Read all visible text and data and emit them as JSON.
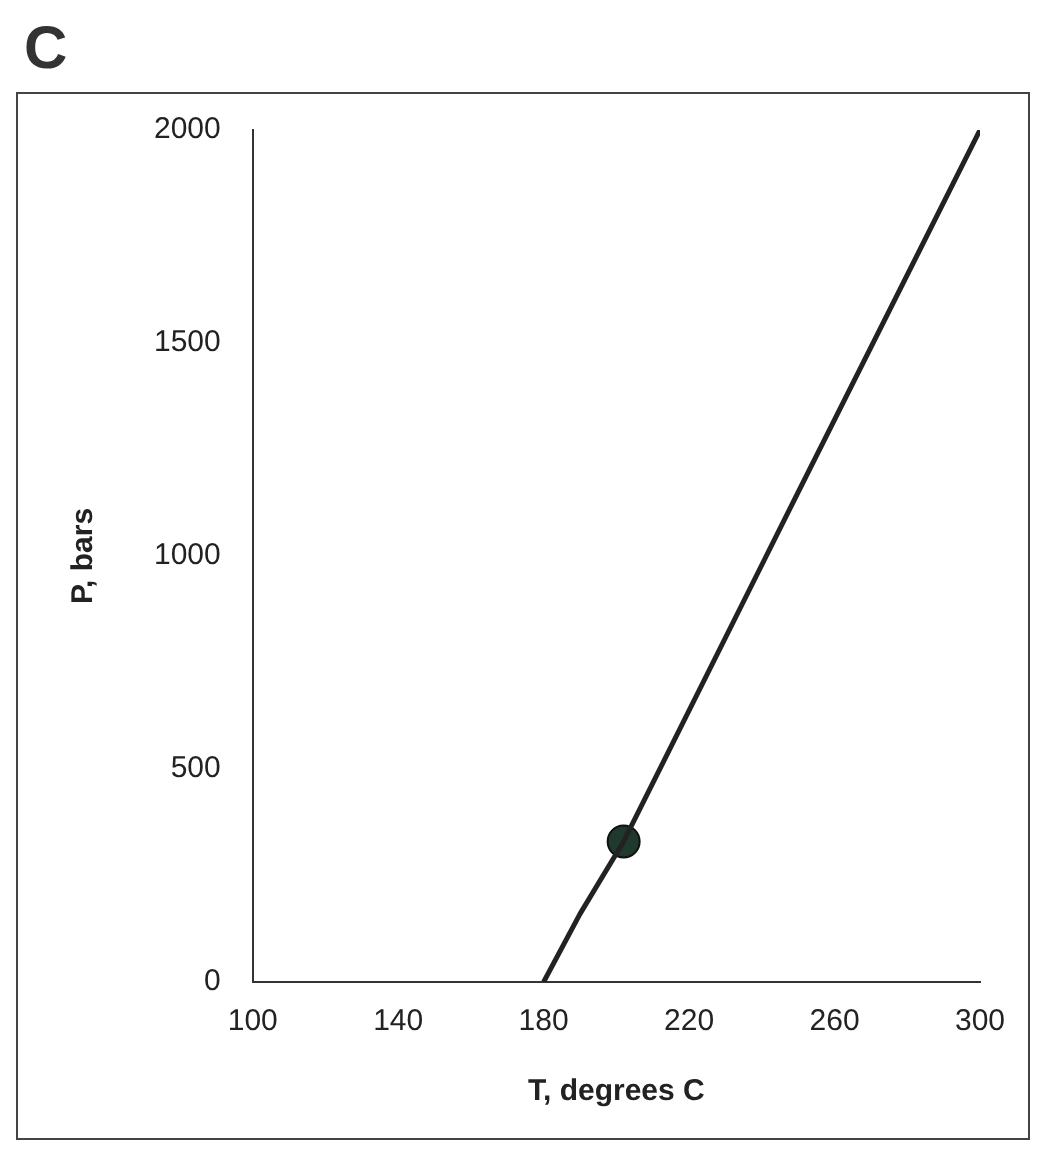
{
  "chart_data": {
    "type": "line",
    "title": "C",
    "xlabel": "T, degrees C",
    "ylabel": "P, bars",
    "xlim": [
      100,
      300
    ],
    "xticks": [
      100,
      140,
      180,
      220,
      260,
      300
    ],
    "ylim": [
      0,
      2000
    ],
    "yticks": [
      0,
      500,
      1000,
      1500,
      2000
    ],
    "grid": false,
    "legend": false,
    "series": [
      {
        "color": "#222222",
        "marker": "none",
        "x": [
          180,
          190,
          202,
          250,
          300
        ],
        "values": [
          0,
          160,
          330,
          1150,
          2000
        ]
      },
      {
        "type": "scatter",
        "color": "#1f3a2c",
        "marker": "circle",
        "x": [
          202
        ],
        "values": [
          330
        ]
      }
    ]
  }
}
